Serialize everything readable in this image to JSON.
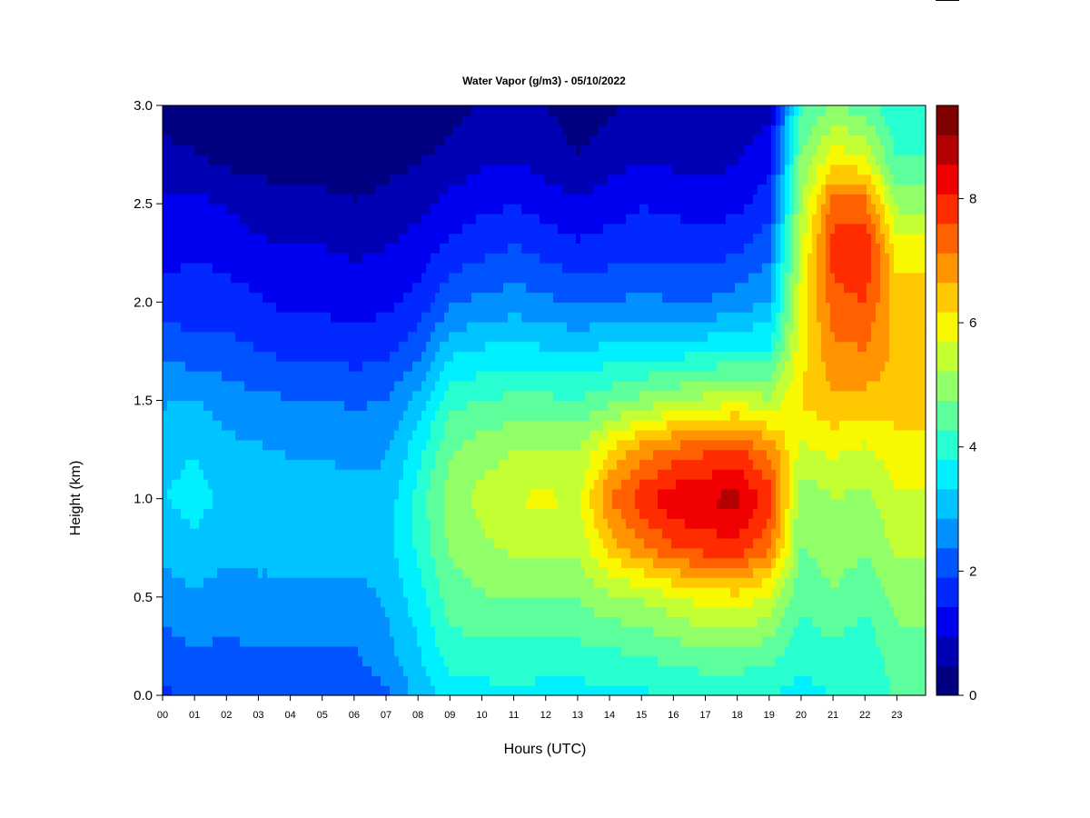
{
  "chart_data": {
    "type": "heatmap",
    "title": "Water Vapor (g/m3) - 05/10/2022",
    "xlabel": "Hours (UTC)",
    "ylabel": "Height (km)",
    "x_unit": "hours UTC",
    "xlim": [
      0,
      23.9
    ],
    "ylim": [
      0,
      3.0
    ],
    "x_ticks": [
      0,
      1,
      2,
      3,
      4,
      5,
      6,
      7,
      8,
      9,
      10,
      11,
      12,
      13,
      14,
      15,
      16,
      17,
      18,
      19,
      20,
      21,
      22,
      23
    ],
    "x_tick_labels": [
      "00",
      "01",
      "02",
      "03",
      "04",
      "05",
      "06",
      "07",
      "08",
      "09",
      "10",
      "11",
      "12",
      "13",
      "14",
      "15",
      "16",
      "17",
      "18",
      "19",
      "20",
      "21",
      "22",
      "23"
    ],
    "y_ticks": [
      0.0,
      0.5,
      1.0,
      1.5,
      2.0,
      2.5,
      3.0
    ],
    "y_tick_labels": [
      "0.0",
      "0.5",
      "1.0",
      "1.5",
      "2.0",
      "2.5",
      "3.0"
    ],
    "x": [
      0,
      1,
      2,
      3,
      4,
      5,
      6,
      7,
      8,
      9,
      10,
      11,
      12,
      13,
      14,
      15,
      16,
      17,
      18,
      19,
      20,
      21,
      22,
      23
    ],
    "y": [
      0.0,
      0.25,
      0.5,
      0.75,
      1.0,
      1.25,
      1.5,
      1.75,
      2.0,
      2.25,
      2.5,
      2.75,
      3.0
    ],
    "z": [
      [
        1.8,
        2.2,
        2.6,
        3.0,
        3.3,
        3.2,
        2.8,
        2.3,
        1.6,
        1.3,
        1.1,
        0.6,
        0.3
      ],
      [
        2.0,
        2.4,
        2.8,
        3.2,
        3.5,
        3.3,
        2.9,
        2.1,
        1.6,
        1.4,
        1.1,
        0.5,
        0.2
      ],
      [
        1.9,
        2.3,
        2.6,
        3.0,
        3.2,
        3.0,
        2.6,
        2.1,
        1.6,
        1.3,
        0.9,
        0.3,
        0.2
      ],
      [
        2.0,
        2.4,
        2.7,
        3.0,
        3.2,
        2.9,
        2.5,
        1.9,
        1.5,
        1.1,
        0.7,
        0.3,
        0.1
      ],
      [
        2.0,
        2.4,
        2.7,
        3.0,
        3.1,
        2.8,
        2.4,
        1.8,
        1.3,
        1.0,
        0.6,
        0.2,
        0.1
      ],
      [
        2.0,
        2.4,
        2.7,
        3.0,
        3.1,
        2.8,
        2.4,
        1.8,
        1.3,
        1.0,
        0.6,
        0.2,
        0.1
      ],
      [
        2.0,
        2.4,
        2.7,
        3.0,
        3.0,
        2.7,
        2.3,
        1.7,
        1.2,
        0.9,
        0.5,
        0.2,
        0.1
      ],
      [
        2.3,
        2.7,
        2.9,
        3.1,
        3.0,
        2.8,
        2.4,
        1.8,
        1.3,
        1.0,
        0.6,
        0.3,
        0.2
      ],
      [
        3.0,
        3.3,
        3.6,
        3.9,
        4.0,
        3.6,
        3.0,
        2.2,
        1.6,
        1.2,
        0.8,
        0.4,
        0.3
      ],
      [
        3.6,
        4.1,
        4.5,
        4.8,
        5.0,
        4.7,
        4.1,
        3.2,
        2.3,
        1.6,
        1.1,
        0.6,
        0.3
      ],
      [
        3.6,
        4.2,
        4.7,
        5.1,
        5.4,
        5.0,
        4.3,
        3.4,
        2.5,
        1.8,
        1.3,
        0.8,
        0.5
      ],
      [
        3.7,
        4.2,
        4.8,
        5.3,
        5.7,
        5.2,
        4.4,
        3.5,
        2.6,
        2.0,
        1.4,
        0.9,
        0.6
      ],
      [
        3.6,
        4.2,
        4.8,
        5.4,
        5.8,
        5.3,
        4.4,
        3.4,
        2.5,
        1.8,
        1.2,
        0.7,
        0.5
      ],
      [
        3.6,
        4.2,
        4.8,
        5.3,
        5.6,
        5.2,
        4.3,
        3.3,
        2.3,
        1.6,
        1.0,
        0.5,
        0.2
      ],
      [
        3.7,
        4.3,
        5.1,
        6.4,
        7.1,
        6.2,
        4.6,
        3.5,
        2.4,
        1.7,
        1.2,
        0.7,
        0.4
      ],
      [
        3.7,
        4.4,
        5.3,
        7.0,
        7.9,
        6.9,
        4.9,
        3.6,
        2.5,
        1.8,
        1.4,
        0.9,
        0.6
      ],
      [
        3.8,
        4.6,
        5.6,
        7.6,
        8.4,
        7.3,
        5.2,
        3.6,
        2.4,
        1.8,
        1.3,
        0.8,
        0.5
      ],
      [
        3.8,
        4.8,
        5.9,
        7.8,
        8.6,
        7.5,
        5.4,
        3.7,
        2.4,
        1.7,
        1.2,
        0.7,
        0.5
      ],
      [
        3.8,
        4.8,
        6.0,
        7.9,
        8.7,
        7.7,
        5.6,
        3.9,
        2.6,
        1.9,
        1.3,
        0.9,
        0.6
      ],
      [
        3.8,
        4.6,
        5.6,
        7.2,
        7.9,
        7.0,
        5.3,
        3.9,
        2.9,
        2.3,
        1.7,
        1.2,
        0.8
      ],
      [
        3.6,
        4.0,
        4.4,
        4.7,
        4.9,
        5.6,
        6.2,
        6.0,
        5.8,
        5.6,
        5.2,
        4.8,
        4.2
      ],
      [
        3.8,
        4.2,
        4.7,
        5.0,
        5.2,
        5.8,
        6.6,
        7.0,
        7.4,
        7.8,
        7.4,
        5.9,
        4.8
      ],
      [
        3.8,
        4.0,
        4.4,
        4.8,
        5.1,
        5.6,
        6.5,
        7.1,
        7.6,
        8.1,
        7.3,
        5.6,
        4.5
      ],
      [
        4.4,
        4.6,
        4.9,
        5.3,
        5.6,
        6.0,
        6.4,
        6.5,
        6.4,
        6.0,
        5.1,
        4.2,
        3.8
      ]
    ],
    "colorbar": {
      "min": 0,
      "max": 9.5,
      "ticks": [
        0,
        2,
        4,
        6,
        8
      ],
      "tick_labels": [
        "0",
        "2",
        "4",
        "6",
        "8"
      ],
      "levels": [
        0,
        0.5,
        1.0,
        1.5,
        2.0,
        2.5,
        3.0,
        3.5,
        4.0,
        4.5,
        5.0,
        5.5,
        6.0,
        6.5,
        7.0,
        7.5,
        8.0,
        8.5,
        9.0,
        9.5
      ],
      "colors": [
        "#000080",
        "#0000b4",
        "#0000f0",
        "#0028ff",
        "#0054ff",
        "#0090ff",
        "#00c4ff",
        "#00f0ff",
        "#28ffd0",
        "#5cff9c",
        "#90ff68",
        "#c4ff34",
        "#f8f800",
        "#ffc800",
        "#ff9400",
        "#ff6000",
        "#ff2c00",
        "#f00000",
        "#b40000",
        "#800000"
      ]
    },
    "grid": false,
    "legend": "colorbar right"
  }
}
